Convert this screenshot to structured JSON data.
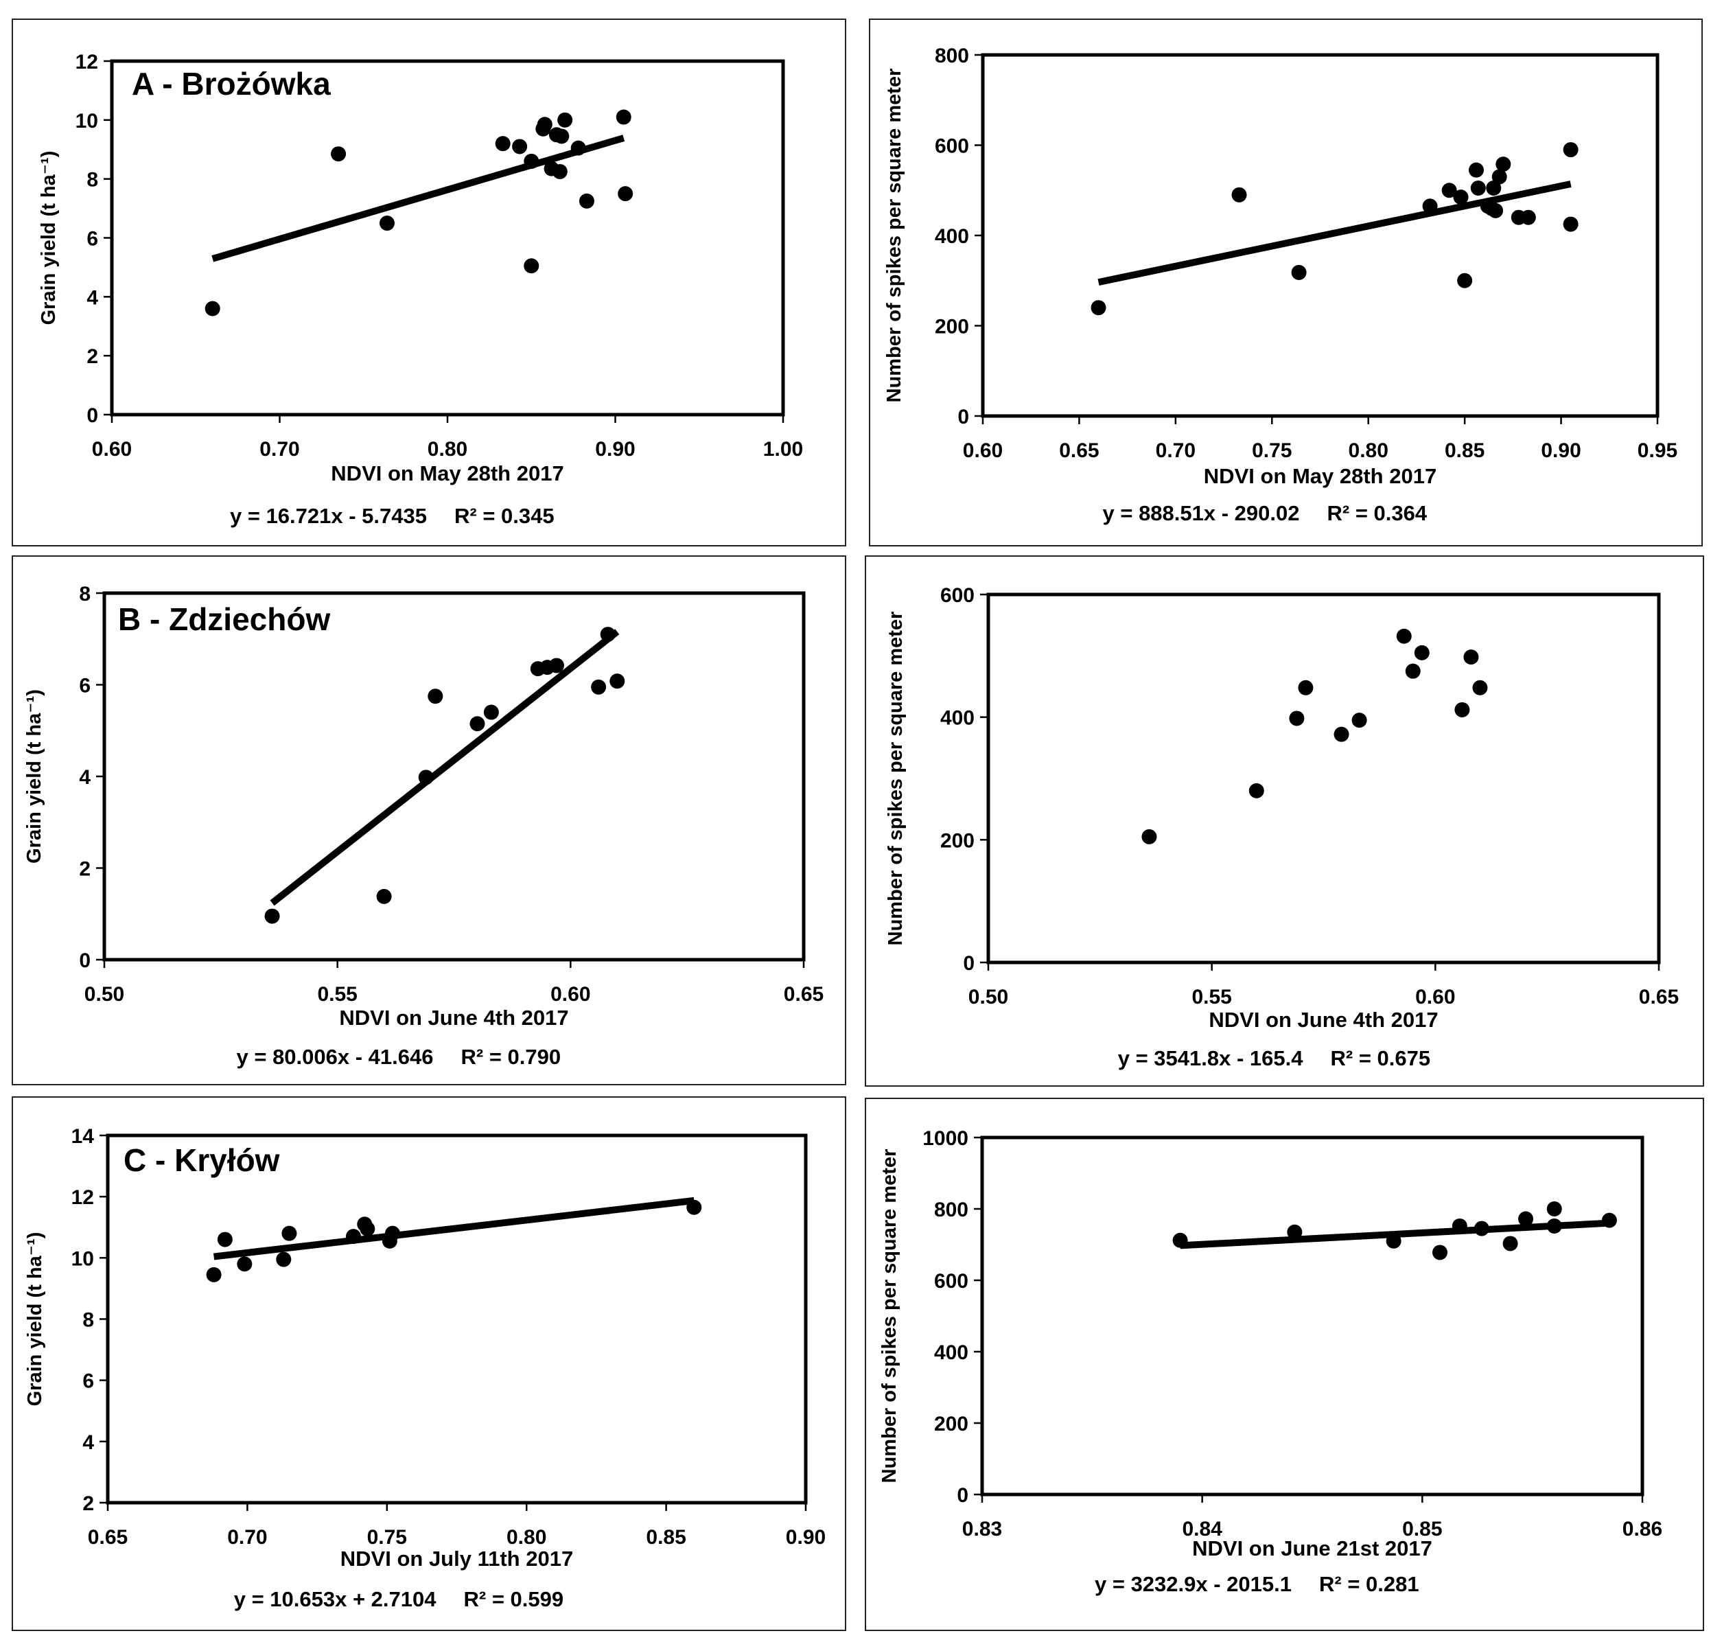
{
  "chart_data": [
    {
      "type": "scatter",
      "title": "A - Brożówka",
      "xlabel": "NDVI on May 28th 2017",
      "ylabel": "Grain yield (t ha⁻¹)",
      "xlim": [
        0.6,
        1.0
      ],
      "ylim": [
        0,
        12
      ],
      "xticks": [
        "0.60",
        "0.70",
        "0.80",
        "0.90",
        "1.00"
      ],
      "yticks": [
        "0",
        "2",
        "4",
        "6",
        "8",
        "10",
        "12"
      ],
      "equation": "y = 16.721x - 5.7435",
      "r2": "R² = 0.345",
      "trendline": {
        "slope": 16.721,
        "intercept": -5.7435,
        "x_range": [
          0.66,
          0.905
        ]
      },
      "grid": false,
      "points": [
        {
          "x": 0.66,
          "y": 3.6
        },
        {
          "x": 0.735,
          "y": 8.85
        },
        {
          "x": 0.764,
          "y": 6.5
        },
        {
          "x": 0.833,
          "y": 9.2
        },
        {
          "x": 0.843,
          "y": 9.1
        },
        {
          "x": 0.85,
          "y": 8.6
        },
        {
          "x": 0.85,
          "y": 5.05
        },
        {
          "x": 0.857,
          "y": 9.7
        },
        {
          "x": 0.858,
          "y": 9.85
        },
        {
          "x": 0.862,
          "y": 8.35
        },
        {
          "x": 0.865,
          "y": 9.5
        },
        {
          "x": 0.867,
          "y": 8.25
        },
        {
          "x": 0.868,
          "y": 9.45
        },
        {
          "x": 0.87,
          "y": 10.0
        },
        {
          "x": 0.878,
          "y": 9.05
        },
        {
          "x": 0.883,
          "y": 7.25
        },
        {
          "x": 0.905,
          "y": 10.1
        },
        {
          "x": 0.906,
          "y": 7.5
        }
      ]
    },
    {
      "type": "scatter",
      "title": "",
      "xlabel": "NDVI  on May 28th 2017",
      "ylabel": "Number of spikes per square meter",
      "xlim": [
        0.6,
        0.95
      ],
      "ylim": [
        0,
        800
      ],
      "xticks": [
        "0.60",
        "0.65",
        "0.70",
        "0.75",
        "0.80",
        "0.85",
        "0.90",
        "0.95"
      ],
      "yticks": [
        "0",
        "200",
        "400",
        "600",
        "800"
      ],
      "equation": "y = 888.51x - 290.02",
      "r2": "R² = 0.364",
      "trendline": {
        "slope": 888.51,
        "intercept": -290.02,
        "x_range": [
          0.66,
          0.905
        ]
      },
      "grid": false,
      "points": [
        {
          "x": 0.66,
          "y": 240
        },
        {
          "x": 0.733,
          "y": 490
        },
        {
          "x": 0.764,
          "y": 318
        },
        {
          "x": 0.832,
          "y": 465
        },
        {
          "x": 0.842,
          "y": 500
        },
        {
          "x": 0.848,
          "y": 485
        },
        {
          "x": 0.85,
          "y": 300
        },
        {
          "x": 0.856,
          "y": 545
        },
        {
          "x": 0.857,
          "y": 505
        },
        {
          "x": 0.862,
          "y": 465
        },
        {
          "x": 0.864,
          "y": 460
        },
        {
          "x": 0.865,
          "y": 505
        },
        {
          "x": 0.866,
          "y": 455
        },
        {
          "x": 0.868,
          "y": 530
        },
        {
          "x": 0.87,
          "y": 558
        },
        {
          "x": 0.878,
          "y": 440
        },
        {
          "x": 0.883,
          "y": 440
        },
        {
          "x": 0.905,
          "y": 590
        },
        {
          "x": 0.905,
          "y": 425
        }
      ]
    },
    {
      "type": "scatter",
      "title": "B - Zdziechów",
      "xlabel": "NDVI on June 4th 2017",
      "ylabel": "Grain yield (t ha⁻¹)",
      "xlim": [
        0.5,
        0.65
      ],
      "ylim": [
        0,
        8
      ],
      "xticks": [
        "0.50",
        "0.55",
        "0.60",
        "0.65"
      ],
      "yticks": [
        "0",
        "2",
        "4",
        "6",
        "8"
      ],
      "equation": "y = 80.006x - 41.646",
      "r2": "R² = 0.790",
      "trendline": {
        "slope": 80.006,
        "intercept": -41.646,
        "x_range": [
          0.536,
          0.61
        ]
      },
      "grid": false,
      "points": [
        {
          "x": 0.536,
          "y": 0.95
        },
        {
          "x": 0.56,
          "y": 1.38
        },
        {
          "x": 0.569,
          "y": 3.98
        },
        {
          "x": 0.571,
          "y": 5.75
        },
        {
          "x": 0.58,
          "y": 5.15
        },
        {
          "x": 0.583,
          "y": 5.4
        },
        {
          "x": 0.593,
          "y": 6.35
        },
        {
          "x": 0.595,
          "y": 6.38
        },
        {
          "x": 0.597,
          "y": 6.42
        },
        {
          "x": 0.606,
          "y": 5.95
        },
        {
          "x": 0.608,
          "y": 7.1
        },
        {
          "x": 0.61,
          "y": 6.08
        }
      ]
    },
    {
      "type": "scatter",
      "title": "",
      "xlabel": "NDVI on June 4th 2017",
      "ylabel": "Number of spikes per square meter",
      "xlim": [
        0.5,
        0.65
      ],
      "ylim": [
        0,
        600
      ],
      "xticks": [
        "0.50",
        "0.55",
        "0.60",
        "0.65"
      ],
      "yticks": [
        "0",
        "200",
        "400",
        "600"
      ],
      "equation": "y = 3541.8x - 165.4",
      "r2": "R² = 0.675",
      "trendline": {
        "slope": 3541.8,
        "intercept": -165.4,
        "x_range": [
          0.536,
          0.61
        ]
      },
      "grid": false,
      "points": [
        {
          "x": 0.536,
          "y": 205
        },
        {
          "x": 0.56,
          "y": 280
        },
        {
          "x": 0.569,
          "y": 398
        },
        {
          "x": 0.571,
          "y": 448
        },
        {
          "x": 0.579,
          "y": 372
        },
        {
          "x": 0.583,
          "y": 395
        },
        {
          "x": 0.593,
          "y": 532
        },
        {
          "x": 0.595,
          "y": 475
        },
        {
          "x": 0.597,
          "y": 505
        },
        {
          "x": 0.606,
          "y": 412
        },
        {
          "x": 0.608,
          "y": 498
        },
        {
          "x": 0.61,
          "y": 448
        }
      ]
    },
    {
      "type": "scatter",
      "title": "C - Kryłów",
      "xlabel": "NDVI on July 11th 2017",
      "ylabel": "Grain yield (t ha⁻¹)",
      "xlim": [
        0.65,
        0.9
      ],
      "ylim": [
        2,
        14
      ],
      "xticks": [
        "0.65",
        "0.70",
        "0.75",
        "0.80",
        "0.85",
        "0.90"
      ],
      "yticks": [
        "2",
        "4",
        "6",
        "8",
        "10",
        "12",
        "14"
      ],
      "equation": "y = 10.653x + 2.7104",
      "r2": "R² = 0.599",
      "trendline": {
        "slope": 10.653,
        "intercept": 2.7104,
        "x_range": [
          0.688,
          0.86
        ]
      },
      "grid": false,
      "points": [
        {
          "x": 0.688,
          "y": 9.45
        },
        {
          "x": 0.692,
          "y": 10.6
        },
        {
          "x": 0.699,
          "y": 9.8
        },
        {
          "x": 0.713,
          "y": 9.95
        },
        {
          "x": 0.715,
          "y": 10.8
        },
        {
          "x": 0.738,
          "y": 10.7
        },
        {
          "x": 0.742,
          "y": 11.1
        },
        {
          "x": 0.743,
          "y": 10.95
        },
        {
          "x": 0.751,
          "y": 10.55
        },
        {
          "x": 0.752,
          "y": 10.8
        },
        {
          "x": 0.86,
          "y": 11.65
        }
      ]
    },
    {
      "type": "scatter",
      "title": "",
      "xlabel": "NDVI on June 21st 2017",
      "ylabel": "Number of spikes per square meter",
      "xlim": [
        0.83,
        0.86
      ],
      "ylim": [
        0,
        1000
      ],
      "xticks": [
        "0.83",
        "0.84",
        "0.85",
        "0.86"
      ],
      "yticks": [
        "0",
        "200",
        "400",
        "600",
        "800",
        "1000"
      ],
      "equation": "y = 3232.9x - 2015.1",
      "r2": "R² = 0.281",
      "trendline": {
        "slope": 3232.9,
        "intercept": -2015.1,
        "x_range": [
          0.839,
          0.8585
        ]
      },
      "grid": false,
      "points": [
        {
          "x": 0.839,
          "y": 712
        },
        {
          "x": 0.8442,
          "y": 735
        },
        {
          "x": 0.8487,
          "y": 710
        },
        {
          "x": 0.8508,
          "y": 678
        },
        {
          "x": 0.8517,
          "y": 752
        },
        {
          "x": 0.8527,
          "y": 745
        },
        {
          "x": 0.854,
          "y": 703
        },
        {
          "x": 0.8547,
          "y": 772
        },
        {
          "x": 0.856,
          "y": 800
        },
        {
          "x": 0.856,
          "y": 752
        },
        {
          "x": 0.8585,
          "y": 768
        }
      ]
    }
  ]
}
